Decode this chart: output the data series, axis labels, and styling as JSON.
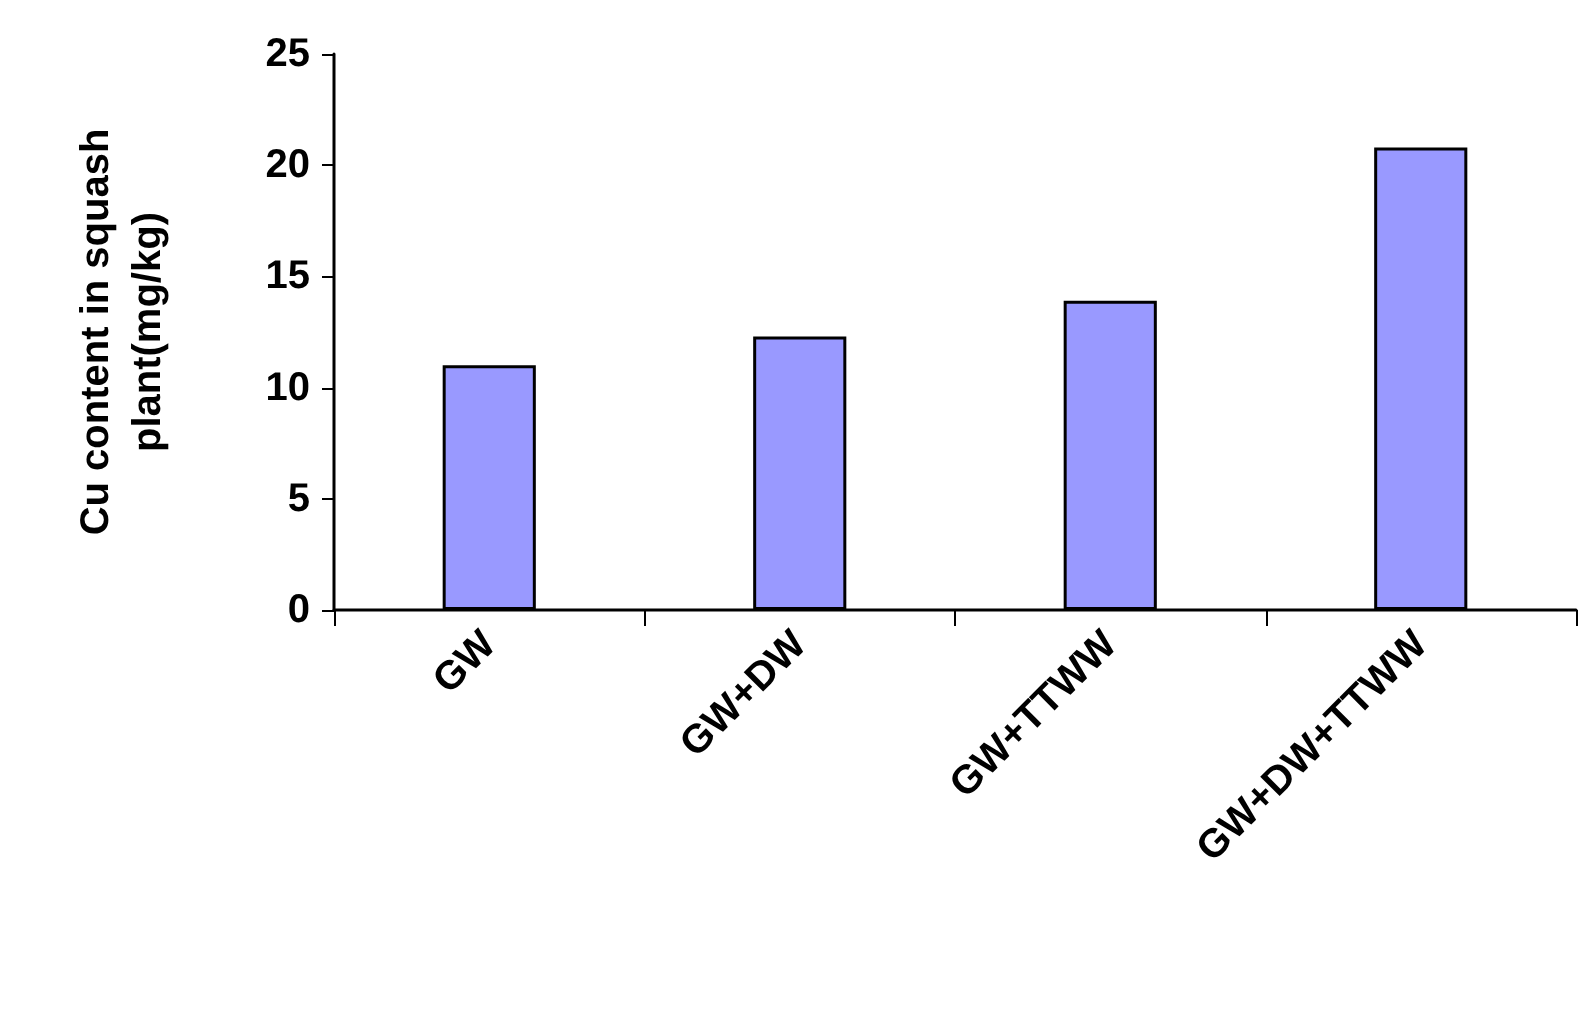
{
  "chart_data": {
    "type": "bar",
    "ylabel": "Cu content in squash plant(mg/kg)",
    "categories": [
      "GW",
      "GW+DW",
      "GW+TTWW",
      "GW+DW+TTWW"
    ],
    "values": [
      11.0,
      12.3,
      13.9,
      20.8
    ],
    "color": "#9999ff",
    "ylim": [
      0,
      25
    ],
    "yticks": [
      0,
      5,
      10,
      15,
      20,
      25
    ],
    "grid": false
  }
}
